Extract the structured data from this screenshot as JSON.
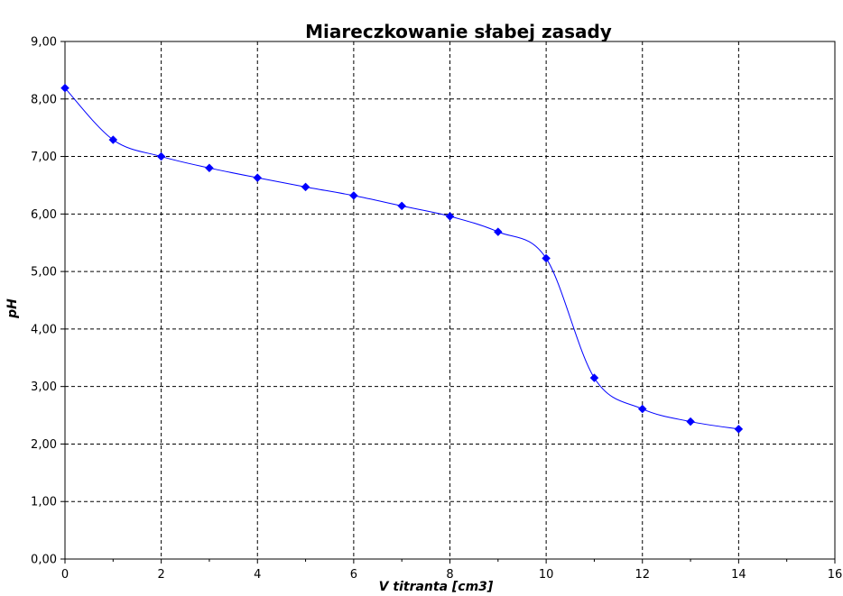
{
  "chart_data": {
    "type": "line",
    "title": "Miareczkowanie słabej zasady",
    "xlabel": "V titranta [cm3]",
    "ylabel": "pH",
    "xlim": [
      0,
      16
    ],
    "ylim": [
      0,
      9
    ],
    "x_ticks": [
      "0",
      "2",
      "4",
      "6",
      "8",
      "10",
      "12",
      "14",
      "16"
    ],
    "y_ticks": [
      "0,00",
      "1,00",
      "2,00",
      "3,00",
      "4,00",
      "5,00",
      "6,00",
      "7,00",
      "8,00",
      "9,00"
    ],
    "grid": true,
    "legend": "none",
    "line_style": "smooth",
    "marker": "diamond",
    "series": [
      {
        "color": "#0000ff",
        "x": [
          0,
          1,
          2,
          3,
          4,
          5,
          6,
          7,
          8,
          9,
          10,
          11,
          12,
          13,
          14
        ],
        "y": [
          8.19,
          7.29,
          7.0,
          6.8,
          6.63,
          6.47,
          6.32,
          6.14,
          5.96,
          5.69,
          5.23,
          3.15,
          2.61,
          2.39,
          2.26
        ]
      }
    ]
  }
}
